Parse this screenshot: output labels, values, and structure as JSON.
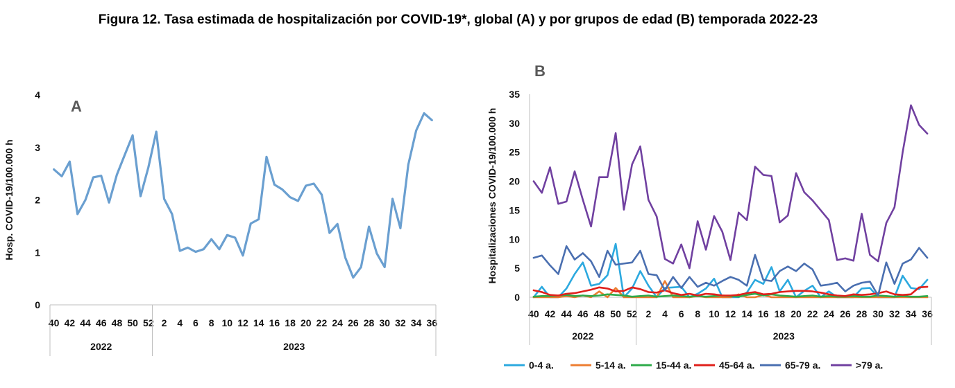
{
  "title": "Figura 12. Tasa estimada de hospitalización por COVID-19*, global (A) y por grupos de edad (B) temporada 2022-23",
  "chart_data": [
    {
      "type": "line",
      "panel_label": "A",
      "ylabel": "Hosp. COVID-19/100.000 h",
      "ylim": [
        0,
        4
      ],
      "yticks": [
        0,
        1,
        2,
        3,
        4
      ],
      "week_ticks": [
        "40",
        "42",
        "44",
        "46",
        "48",
        "50",
        "52",
        "2",
        "4",
        "6",
        "8",
        "10",
        "12",
        "14",
        "16",
        "18",
        "20",
        "22",
        "24",
        "26",
        "28",
        "30",
        "32",
        "34",
        "36"
      ],
      "year_groups": [
        {
          "label": "2022",
          "weeks": 13
        },
        {
          "label": "2023",
          "weeks": 36
        }
      ],
      "color": "#6A9FD0",
      "series": [
        {
          "name": "Global",
          "values": [
            2.58,
            2.45,
            2.73,
            1.73,
            2.0,
            2.43,
            2.46,
            1.95,
            2.48,
            2.86,
            3.23,
            2.07,
            2.62,
            3.3,
            2.02,
            1.73,
            1.03,
            1.09,
            1.01,
            1.06,
            1.25,
            1.06,
            1.33,
            1.28,
            0.94,
            1.55,
            1.63,
            2.82,
            2.29,
            2.2,
            2.05,
            1.98,
            2.27,
            2.31,
            2.1,
            1.37,
            1.54,
            0.9,
            0.52,
            0.72,
            1.49,
            0.98,
            0.72,
            2.02,
            1.46,
            2.67,
            3.32,
            3.65,
            3.52
          ]
        }
      ]
    },
    {
      "type": "line",
      "panel_label": "B",
      "ylabel": "Hospitalizaciones  COVID-19/100.000 h",
      "ylim": [
        0,
        35
      ],
      "yticks": [
        0,
        5,
        10,
        15,
        20,
        25,
        30,
        35
      ],
      "week_ticks": [
        "40",
        "42",
        "44",
        "46",
        "48",
        "50",
        "52",
        "2",
        "4",
        "6",
        "8",
        "10",
        "12",
        "14",
        "16",
        "18",
        "20",
        "22",
        "24",
        "26",
        "28",
        "30",
        "32",
        "34",
        "36"
      ],
      "year_groups": [
        {
          "label": "2022",
          "weeks": 13
        },
        {
          "label": "2023",
          "weeks": 36
        }
      ],
      "series": [
        {
          "name": "0-4 a.",
          "color": "#2CA9DF",
          "values": [
            0.0,
            1.8,
            0.0,
            0.0,
            1.5,
            4.0,
            6.0,
            2.0,
            2.3,
            3.8,
            9.2,
            0.0,
            1.5,
            4.5,
            2.0,
            0.0,
            1.6,
            1.7,
            1.8,
            0.0,
            0.6,
            1.5,
            3.2,
            0.0,
            0.0,
            0.0,
            0.8,
            3.0,
            2.3,
            5.2,
            1.0,
            3.0,
            0.0,
            1.1,
            2.0,
            0.0,
            1.0,
            0.0,
            0.0,
            0.0,
            1.5,
            1.6,
            0.0,
            0.0,
            0.0,
            3.7,
            1.6,
            1.4,
            3.0
          ]
        },
        {
          "name": "5-14 a.",
          "color": "#ED7D31",
          "values": [
            0.0,
            0.0,
            0.0,
            0.0,
            0.2,
            0.0,
            0.3,
            0.0,
            1.0,
            0.0,
            1.6,
            0.0,
            0.0,
            0.0,
            0.0,
            0.0,
            2.8,
            0.0,
            0.0,
            0.0,
            0.2,
            0.0,
            0.0,
            0.0,
            0.0,
            0.5,
            0.0,
            0.0,
            0.4,
            0.0,
            0.0,
            0.0,
            0.0,
            0.0,
            0.0,
            0.0,
            0.0,
            0.0,
            0.0,
            0.0,
            0.0,
            0.0,
            0.0,
            0.0,
            0.0,
            0.0,
            0.0,
            0.0,
            0.0
          ]
        },
        {
          "name": "15-44 a.",
          "color": "#2EAA4A",
          "values": [
            0.1,
            0.2,
            0.2,
            0.3,
            0.4,
            0.2,
            0.3,
            0.2,
            0.3,
            0.5,
            0.4,
            0.3,
            0.1,
            0.2,
            0.3,
            0.1,
            0.2,
            0.3,
            0.2,
            0.1,
            0.2,
            0.1,
            0.2,
            0.3,
            0.2,
            0.1,
            0.4,
            0.6,
            0.3,
            0.5,
            0.3,
            0.2,
            0.1,
            0.2,
            0.3,
            0.1,
            0.2,
            0.1,
            0.1,
            0.2,
            0.1,
            0.1,
            0.3,
            0.2,
            0.1,
            0.2,
            0.1,
            0.1,
            0.2
          ]
        },
        {
          "name": "45-64 a.",
          "color": "#E0201B",
          "values": [
            1.2,
            0.9,
            0.4,
            0.3,
            0.6,
            0.7,
            1.0,
            1.3,
            1.7,
            1.5,
            1.0,
            1.1,
            1.7,
            1.4,
            0.9,
            0.8,
            1.2,
            0.7,
            0.4,
            0.6,
            0.3,
            0.6,
            0.5,
            0.3,
            0.3,
            0.4,
            0.7,
            0.9,
            0.5,
            0.6,
            0.9,
            1.0,
            1.1,
            1.1,
            1.0,
            0.8,
            0.5,
            0.3,
            0.2,
            0.5,
            0.4,
            0.5,
            0.7,
            1.0,
            0.5,
            0.4,
            0.5,
            1.7,
            1.8
          ]
        },
        {
          "name": "65-79 a.",
          "color": "#4A6FB0",
          "values": [
            6.8,
            7.2,
            5.5,
            4.0,
            8.8,
            6.5,
            7.6,
            6.2,
            3.5,
            8.0,
            5.6,
            5.8,
            6.0,
            8.0,
            4.0,
            3.8,
            1.2,
            3.5,
            1.6,
            3.5,
            1.8,
            2.5,
            2.0,
            2.8,
            3.5,
            3.0,
            2.0,
            7.3,
            3.0,
            2.8,
            4.5,
            5.3,
            4.5,
            5.8,
            4.8,
            2.0,
            2.2,
            2.5,
            1.0,
            2.0,
            2.5,
            2.7,
            0.3,
            6.0,
            2.3,
            5.8,
            6.5,
            8.5,
            6.8
          ]
        },
        {
          "name": ">79 a.",
          "color": "#7040A0",
          "values": [
            20.0,
            18.0,
            22.4,
            16.1,
            16.5,
            21.7,
            16.8,
            12.2,
            20.7,
            20.7,
            28.3,
            15.1,
            22.9,
            26.0,
            16.8,
            13.9,
            6.6,
            5.8,
            9.1,
            5.0,
            13.1,
            8.2,
            14.0,
            11.3,
            6.4,
            14.6,
            13.3,
            22.5,
            21.1,
            20.9,
            12.9,
            14.1,
            21.4,
            18.1,
            16.7,
            15.0,
            13.3,
            6.4,
            6.7,
            6.3,
            14.4,
            7.3,
            6.2,
            12.8,
            15.5,
            25.0,
            33.1,
            29.7,
            28.2
          ]
        }
      ],
      "legend_position": "bottom"
    }
  ]
}
